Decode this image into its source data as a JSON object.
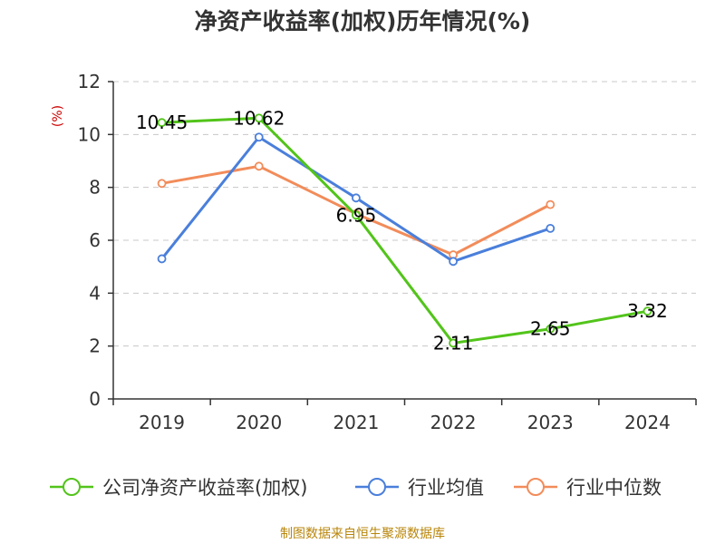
{
  "chart_data": {
    "type": "line",
    "title": "净资产收益率(加权)历年情况(%)",
    "unit": "(%)",
    "categories": [
      "2019",
      "2020",
      "2021",
      "2022",
      "2023",
      "2024"
    ],
    "ylim": [
      0,
      12
    ],
    "yticks": [
      "0",
      "2",
      "4",
      "6",
      "8",
      "10",
      "12"
    ],
    "grid": true,
    "legend_position": "bottom",
    "series": [
      {
        "name": "公司净资产收益率(加权)",
        "color": "#52c41a",
        "values": [
          10.45,
          10.62,
          6.95,
          2.11,
          2.65,
          3.32
        ],
        "labels": [
          "10.45",
          "10.62",
          "6.95",
          "2.11",
          "2.65",
          "3.32"
        ]
      },
      {
        "name": "行业均值",
        "color": "#4a7fdb",
        "values": [
          5.3,
          9.9,
          7.6,
          5.2,
          6.45,
          null
        ]
      },
      {
        "name": "行业中位数",
        "color": "#f28c5a",
        "values": [
          8.15,
          8.8,
          7.0,
          5.45,
          7.35,
          null
        ]
      }
    ]
  },
  "source": "制图数据来自恒生聚源数据库"
}
